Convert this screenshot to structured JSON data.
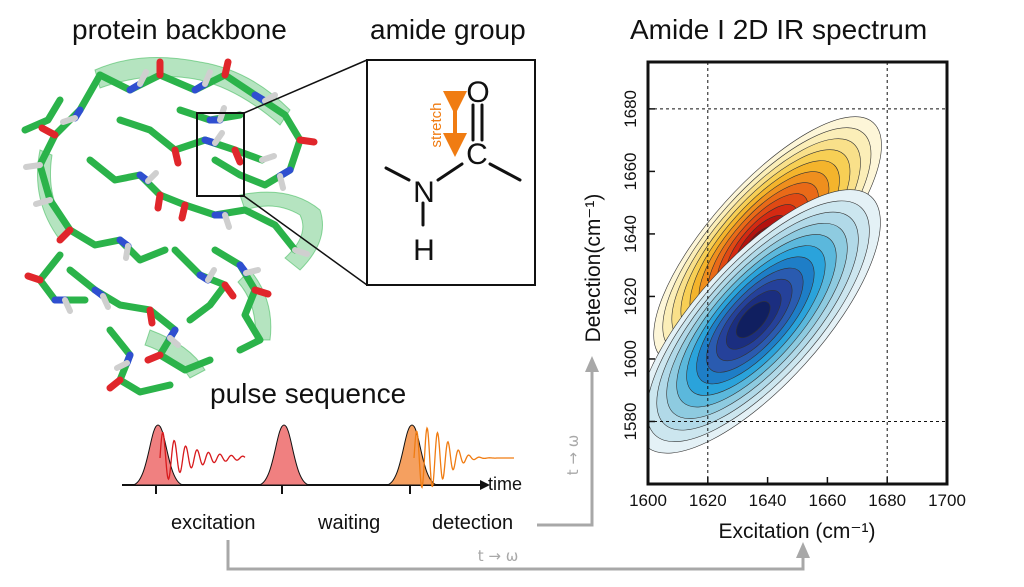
{
  "titles": {
    "backbone": "protein backbone",
    "amide": "amide group",
    "spectrum": "Amide I 2D IR spectrum",
    "pulse": "pulse sequence"
  },
  "amide": {
    "stretch_label": "stretch",
    "atoms": {
      "O": "O",
      "C": "C",
      "N": "N",
      "H": "H"
    }
  },
  "pulse": {
    "time_label": "time",
    "phases": [
      "excitation",
      "waiting",
      "detection"
    ]
  },
  "arrows": {
    "vertical_label": "t → ω",
    "horizontal_label": "t → ω"
  },
  "colors": {
    "carbon": "#2bb34a",
    "nitrogen": "#2f4fd0",
    "oxygen": "#e0262b",
    "hydrogen": "#cfcfcf",
    "stretch_arrow": "#f07c12",
    "pulse_red": "#f08080",
    "pulse_orange": "#f5a060",
    "echo_red": "#d7191c",
    "echo_orange": "#f07c12",
    "arrow_gray": "#a8a8a8"
  },
  "chart_data": {
    "type": "contour",
    "title": "Amide I 2D IR spectrum",
    "xlabel": "Excitation (cm⁻¹)",
    "ylabel": "Detection(cm⁻¹)",
    "xlim": [
      1600,
      1700
    ],
    "ylim": [
      1560,
      1695
    ],
    "xticks": [
      1600,
      1620,
      1640,
      1660,
      1680,
      1700
    ],
    "yticks": [
      1580,
      1600,
      1620,
      1640,
      1660,
      1680
    ],
    "guide_lines": {
      "x": [
        1620,
        1680
      ],
      "y": [
        1580,
        1680
      ]
    },
    "peaks": [
      {
        "name": "positive",
        "center_x": 1640,
        "center_y": 1638,
        "colormap": "yellow-orange-red"
      },
      {
        "name": "negative",
        "center_x": 1637,
        "center_y": 1612,
        "colormap": "light-blue-dark-blue"
      }
    ]
  }
}
